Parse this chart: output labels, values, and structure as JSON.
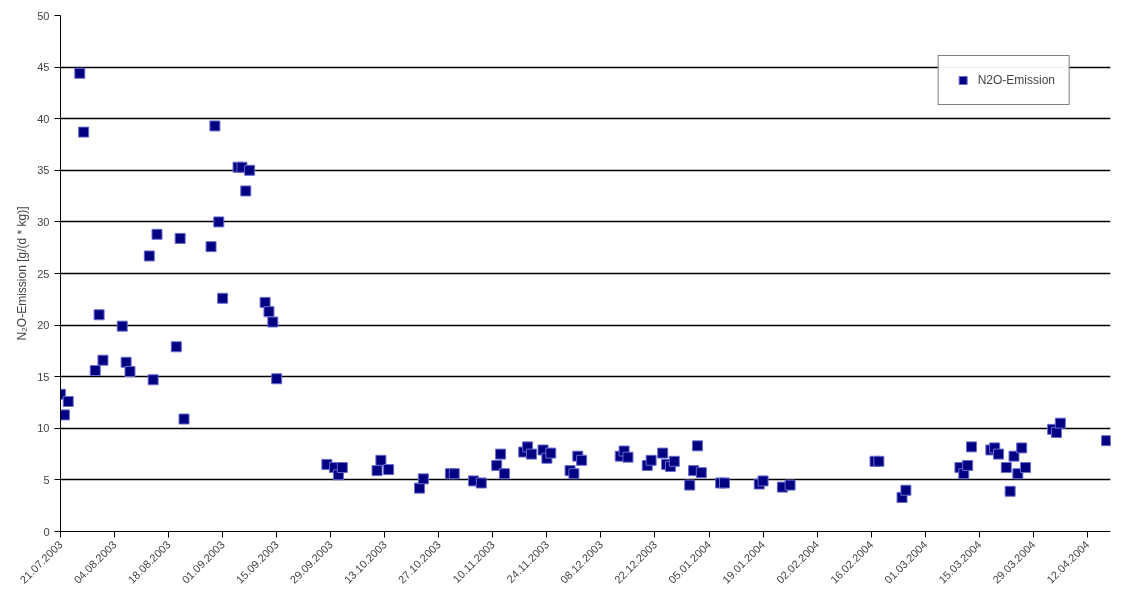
{
  "chart_data": {
    "type": "scatter",
    "ylabel": "N₂O-Emission [g/(d * kg)]",
    "x": [
      "2003-07-21",
      "2003-07-22",
      "2003-07-23",
      "2003-07-26",
      "2003-07-27",
      "2003-07-30",
      "2003-07-31",
      "2003-08-01",
      "2003-08-06",
      "2003-08-07",
      "2003-08-08",
      "2003-08-13",
      "2003-08-14",
      "2003-08-15",
      "2003-08-20",
      "2003-08-21",
      "2003-08-22",
      "2003-08-29",
      "2003-08-30",
      "2003-08-31",
      "2003-09-01",
      "2003-09-05",
      "2003-09-06",
      "2003-09-07",
      "2003-09-08",
      "2003-09-12",
      "2003-09-13",
      "2003-09-14",
      "2003-09-15",
      "2003-09-28",
      "2003-09-30",
      "2003-10-01",
      "2003-10-02",
      "2003-10-11",
      "2003-10-12",
      "2003-10-14",
      "2003-10-22",
      "2003-10-23",
      "2003-10-30",
      "2003-10-31",
      "2003-11-05",
      "2003-11-07",
      "2003-11-11",
      "2003-11-12",
      "2003-11-13",
      "2003-11-18",
      "2003-11-19",
      "2003-11-20",
      "2003-11-23",
      "2003-11-24",
      "2003-11-25",
      "2003-11-30",
      "2003-12-01",
      "2003-12-02",
      "2003-12-03",
      "2003-12-13",
      "2003-12-14",
      "2003-12-15",
      "2003-12-20",
      "2003-12-21",
      "2003-12-24",
      "2003-12-25",
      "2003-12-26",
      "2003-12-27",
      "2003-12-31",
      "2004-01-01",
      "2004-01-02",
      "2004-01-03",
      "2004-01-08",
      "2004-01-09",
      "2004-01-18",
      "2004-01-19",
      "2004-01-24",
      "2004-01-26",
      "2004-02-17",
      "2004-02-18",
      "2004-02-24",
      "2004-02-25",
      "2004-03-10",
      "2004-03-11",
      "2004-03-12",
      "2004-03-13",
      "2004-03-18",
      "2004-03-19",
      "2004-03-20",
      "2004-03-22",
      "2004-03-23",
      "2004-03-24",
      "2004-03-25",
      "2004-03-26",
      "2004-03-27",
      "2004-04-03",
      "2004-04-04",
      "2004-04-05",
      "2004-04-17"
    ],
    "series": [
      {
        "name": "N2O-Emission",
        "color": "#000080",
        "values": [
          13.3,
          11.3,
          12.6,
          44.4,
          38.7,
          15.6,
          21.0,
          16.6,
          19.9,
          16.4,
          15.5,
          26.7,
          14.7,
          28.8,
          17.9,
          28.4,
          10.9,
          27.6,
          39.3,
          30.0,
          22.6,
          35.3,
          35.3,
          33.0,
          35.0,
          22.2,
          21.3,
          20.3,
          14.8,
          6.5,
          6.2,
          5.5,
          6.2,
          5.9,
          6.9,
          6.0,
          4.2,
          5.1,
          5.6,
          5.6,
          4.9,
          4.7,
          6.4,
          7.5,
          5.6,
          7.7,
          8.2,
          7.5,
          7.9,
          7.1,
          7.6,
          5.9,
          5.6,
          7.3,
          6.9,
          7.3,
          7.8,
          7.2,
          6.4,
          6.9,
          7.6,
          6.5,
          6.3,
          6.8,
          4.5,
          5.9,
          8.3,
          5.7,
          4.7,
          4.7,
          4.6,
          4.9,
          4.3,
          4.5,
          6.8,
          6.8,
          3.3,
          4.0,
          6.2,
          5.6,
          6.4,
          8.2,
          7.9,
          8.1,
          7.5,
          6.2,
          3.9,
          7.3,
          5.6,
          8.1,
          6.2,
          9.9,
          9.6,
          10.5,
          8.8
        ]
      }
    ],
    "xlim": [
      "2003-07-21",
      "2004-04-18"
    ],
    "xticks": [
      {
        "value": "2003-07-21",
        "label": "21.07.2003"
      },
      {
        "value": "2003-08-04",
        "label": "04.08.2003"
      },
      {
        "value": "2003-08-18",
        "label": "18.08.2003"
      },
      {
        "value": "2003-09-01",
        "label": "01.09.2003"
      },
      {
        "value": "2003-09-15",
        "label": "15.09.2003"
      },
      {
        "value": "2003-09-29",
        "label": "29.09.2003"
      },
      {
        "value": "2003-10-13",
        "label": "13.10.2003"
      },
      {
        "value": "2003-10-27",
        "label": "27.10.2003"
      },
      {
        "value": "2003-11-10",
        "label": "10.11.2003"
      },
      {
        "value": "2003-11-24",
        "label": "24.11.2003"
      },
      {
        "value": "2003-12-08",
        "label": "08.12.2003"
      },
      {
        "value": "2003-12-22",
        "label": "22.12.2003"
      },
      {
        "value": "2004-01-05",
        "label": "05.01.2004"
      },
      {
        "value": "2004-01-19",
        "label": "19.01.2004"
      },
      {
        "value": "2004-02-02",
        "label": "02.02.2004"
      },
      {
        "value": "2004-02-16",
        "label": "16.02.2004"
      },
      {
        "value": "2004-03-01",
        "label": "01.03.2004"
      },
      {
        "value": "2004-03-15",
        "label": "15.03.2004"
      },
      {
        "value": "2004-03-29",
        "label": "29.03.2004"
      },
      {
        "value": "2004-04-12",
        "label": "12.04.2004"
      }
    ],
    "ylim": [
      0,
      50
    ],
    "yticks": [
      0,
      5,
      10,
      15,
      20,
      25,
      30,
      35,
      40,
      45,
      50
    ],
    "grid": "y",
    "legend": "top right",
    "marker": "square"
  }
}
